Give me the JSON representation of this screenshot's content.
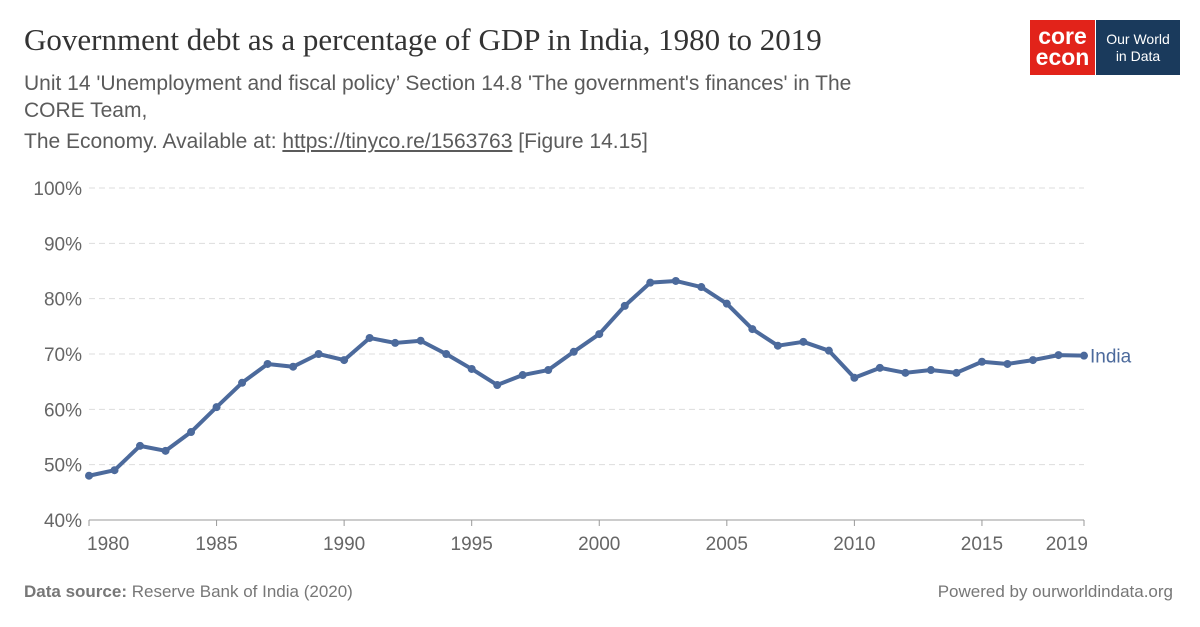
{
  "chart_data": {
    "type": "line",
    "title": "Government debt as a percentage of GDP in India, 1980 to 2019",
    "subtitle_lines": [
      "Unit 14 'Unemployment and fiscal policy’ Section 14.8 'The government's finances' in The",
      "CORE Team,"
    ],
    "subtitle_source": {
      "text": "The Economy. Available at:",
      "link": "https://tinyco.re/1563763",
      "note": "[Figure 14.15]"
    },
    "logos": {
      "core": "core",
      "econ": "econ",
      "owid_line1": "Our World",
      "owid_line2": "in Data"
    },
    "x": [
      1980,
      1981,
      1982,
      1983,
      1984,
      1985,
      1986,
      1987,
      1988,
      1989,
      1990,
      1991,
      1992,
      1993,
      1994,
      1995,
      1996,
      1997,
      1998,
      1999,
      2000,
      2001,
      2002,
      2003,
      2004,
      2005,
      2006,
      2007,
      2008,
      2009,
      2010,
      2011,
      2012,
      2013,
      2014,
      2015,
      2016,
      2017,
      2018,
      2019
    ],
    "series": [
      {
        "name": "India",
        "color": "#4c6a9c",
        "values": [
          48.0,
          49.0,
          53.4,
          52.5,
          55.9,
          60.4,
          64.8,
          68.2,
          67.7,
          70.0,
          68.9,
          72.9,
          72.0,
          72.4,
          70.0,
          67.3,
          64.4,
          66.2,
          67.1,
          70.4,
          73.6,
          78.7,
          82.9,
          83.2,
          82.1,
          79.1,
          74.5,
          71.5,
          72.2,
          70.6,
          65.7,
          67.5,
          66.6,
          67.1,
          66.6,
          68.6,
          68.2,
          68.9,
          69.8,
          69.7
        ]
      }
    ],
    "xlim": [
      1980,
      2019
    ],
    "xticks": [
      1980,
      1985,
      1990,
      1995,
      2000,
      2005,
      2010,
      2015,
      2019
    ],
    "ylim": [
      40,
      100
    ],
    "yticks": [
      {
        "value": 40,
        "label": "40%"
      },
      {
        "value": 50,
        "label": "50%"
      },
      {
        "value": 60,
        "label": "60%"
      },
      {
        "value": 70,
        "label": "70%"
      },
      {
        "value": 80,
        "label": "80%"
      },
      {
        "value": 90,
        "label": "90%"
      },
      {
        "value": 100,
        "label": "100%"
      }
    ],
    "grid": true,
    "source_label": "Data source:",
    "source": "Reserve Bank of India (2020)",
    "powered_by": "Powered by ourworldindata.org"
  }
}
